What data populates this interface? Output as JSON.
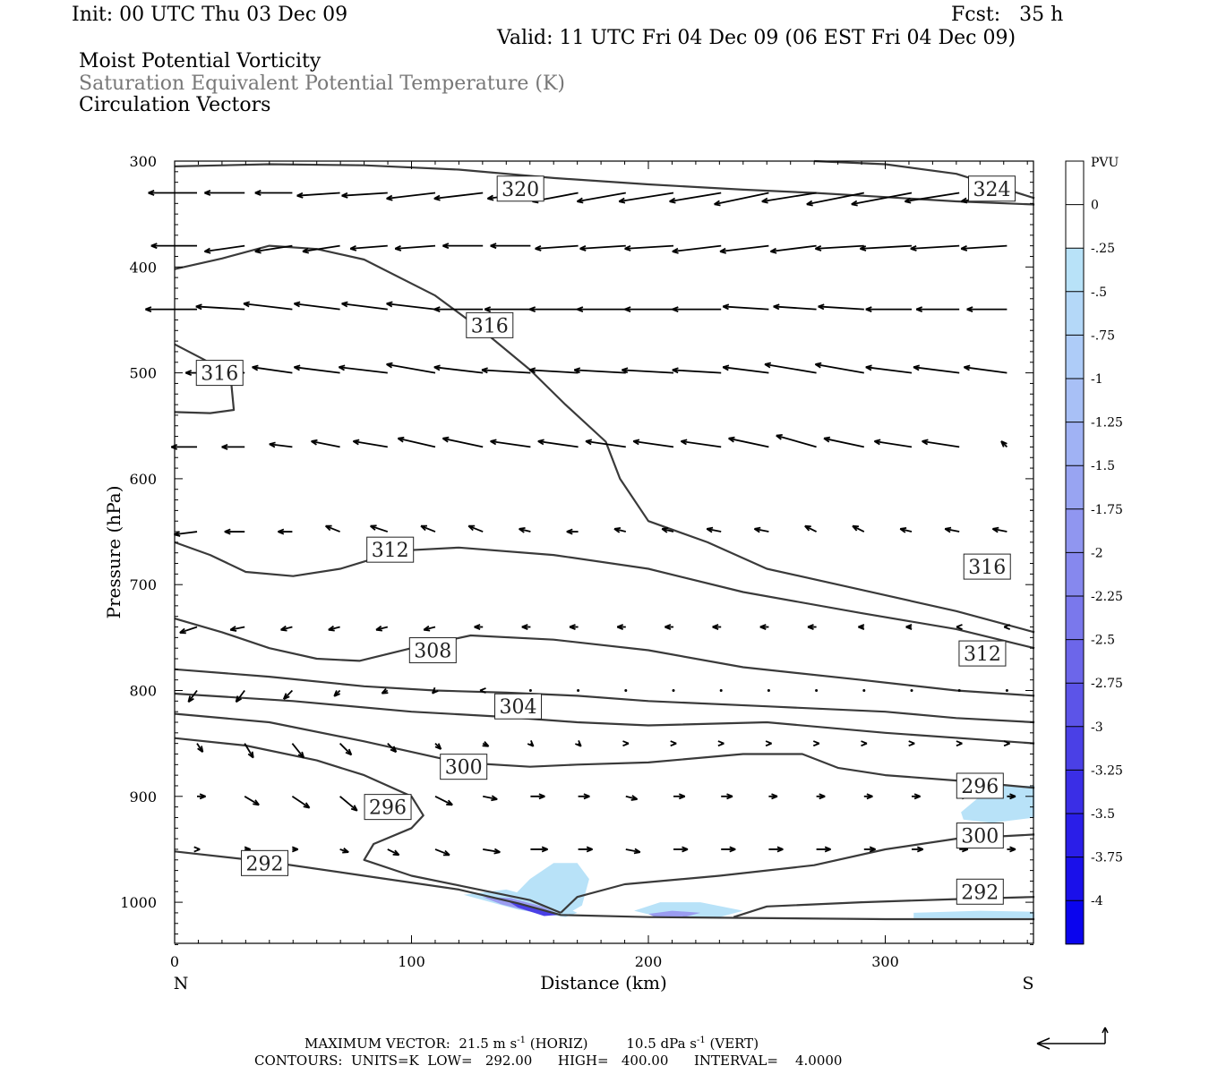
{
  "header": {
    "init": "Init: 00 UTC Thu 03 Dec 09",
    "fcst": "Fcst:   35 h",
    "valid": "Valid: 11 UTC Fri 04 Dec 09 (06 EST Fri 04 Dec 09)"
  },
  "fields": {
    "line1": "Moist Potential Vorticity",
    "line2": "Saturation Equivalent Potential Temperature (K)",
    "line3": "Circulation Vectors"
  },
  "footer": {
    "max_prefix": "MAXIMUM VECTOR:  21.5 m s",
    "max_exp1": "-1",
    "max_mid": " (HORIZ)         10.5 dPa s",
    "max_exp2": "-1",
    "max_suffix": " (VERT)",
    "contours": "CONTOURS:  UNITS=K  LOW=   292.00      HIGH=   400.00      INTERVAL=    4.0000"
  },
  "chart_data": {
    "type": "cross-section",
    "xlabel": "Distance (km)",
    "ylabel": "Pressure (hPa)",
    "xlim": [
      0,
      363
    ],
    "ylim": [
      1040,
      300
    ],
    "x_ticks": [
      "0",
      "100",
      "200",
      "300"
    ],
    "y_ticks": [
      "300",
      "400",
      "500",
      "600",
      "700",
      "800",
      "900",
      "1000"
    ],
    "x_end_labels": {
      "left": "N",
      "right": "S"
    },
    "colorbar": {
      "title": "PVU",
      "labels": [
        "0",
        "-.25",
        "-.5",
        "-.75",
        "-1",
        "-1.25",
        "-1.5",
        "-1.75",
        "-2",
        "-2.25",
        "-2.5",
        "-2.75",
        "-3",
        "-3.25",
        "-3.5",
        "-3.75",
        "-4"
      ],
      "colors": [
        "#ffffff",
        "#ffffff",
        "#b8e2f8",
        "#b4d8f8",
        "#aeccf8",
        "#a8c0f6",
        "#a0b2f4",
        "#98a4f2",
        "#9096f0",
        "#8688ee",
        "#7a78ec",
        "#6c66ea",
        "#5c54e8",
        "#4a40e6",
        "#3a2ee6",
        "#2a1ee8",
        "#1a10ea",
        "#0a04ee"
      ]
    },
    "contours": [
      {
        "label": "320",
        "points": [
          [
            0,
            305
          ],
          [
            40,
            303
          ],
          [
            80,
            304
          ],
          [
            120,
            308
          ],
          [
            160,
            316
          ],
          [
            200,
            322
          ],
          [
            240,
            327
          ],
          [
            270,
            330
          ],
          [
            300,
            334
          ],
          [
            330,
            338
          ],
          [
            363,
            341
          ]
        ]
      },
      {
        "label": "324",
        "points": [
          [
            270,
            300
          ],
          [
            300,
            303
          ],
          [
            330,
            312
          ],
          [
            363,
            335
          ]
        ]
      },
      {
        "label": "316",
        "points": [
          [
            0,
            402
          ],
          [
            20,
            392
          ],
          [
            40,
            380
          ],
          [
            60,
            383
          ],
          [
            80,
            393
          ],
          [
            110,
            427
          ],
          [
            130,
            460
          ],
          [
            150,
            497
          ],
          [
            165,
            530
          ],
          [
            182,
            565
          ],
          [
            188,
            600
          ],
          [
            200,
            640
          ],
          [
            225,
            660
          ],
          [
            250,
            685
          ],
          [
            290,
            705
          ],
          [
            330,
            725
          ],
          [
            363,
            745
          ]
        ]
      },
      {
        "label": "316",
        "points": [
          [
            0,
            473
          ],
          [
            12,
            487
          ],
          [
            20,
            497
          ],
          [
            24,
            512
          ],
          [
            25,
            535
          ],
          [
            15,
            538
          ],
          [
            0,
            537
          ]
        ]
      },
      {
        "label": "312",
        "points": [
          [
            0,
            660
          ],
          [
            15,
            672
          ],
          [
            30,
            688
          ],
          [
            50,
            692
          ],
          [
            70,
            685
          ],
          [
            95,
            668
          ],
          [
            120,
            665
          ],
          [
            160,
            672
          ],
          [
            200,
            685
          ],
          [
            240,
            707
          ],
          [
            290,
            727
          ],
          [
            330,
            742
          ],
          [
            363,
            760
          ]
        ]
      },
      {
        "label": "308",
        "points": [
          [
            0,
            732
          ],
          [
            20,
            745
          ],
          [
            40,
            760
          ],
          [
            60,
            770
          ],
          [
            78,
            772
          ],
          [
            100,
            760
          ],
          [
            125,
            748
          ],
          [
            160,
            752
          ],
          [
            200,
            762
          ],
          [
            240,
            778
          ],
          [
            290,
            790
          ],
          [
            330,
            800
          ],
          [
            363,
            805
          ]
        ]
      },
      {
        "label": "304",
        "points": [
          [
            0,
            780
          ],
          [
            40,
            787
          ],
          [
            80,
            796
          ],
          [
            110,
            800
          ],
          [
            140,
            802
          ],
          [
            170,
            805
          ],
          [
            200,
            810
          ],
          [
            250,
            815
          ],
          [
            300,
            820
          ],
          [
            330,
            826
          ],
          [
            363,
            830
          ]
        ]
      },
      {
        "label": "300",
        "points": [
          [
            0,
            803
          ],
          [
            50,
            810
          ],
          [
            100,
            820
          ],
          [
            140,
            825
          ],
          [
            170,
            830
          ],
          [
            200,
            833
          ],
          [
            250,
            830
          ],
          [
            300,
            840
          ],
          [
            363,
            850
          ]
        ]
      },
      {
        "label": "296",
        "points": [
          [
            0,
            822
          ],
          [
            40,
            830
          ],
          [
            80,
            848
          ],
          [
            120,
            868
          ],
          [
            150,
            872
          ],
          [
            170,
            870
          ],
          [
            200,
            868
          ],
          [
            240,
            860
          ],
          [
            265,
            860
          ],
          [
            280,
            873
          ],
          [
            300,
            880
          ],
          [
            330,
            885
          ],
          [
            363,
            892
          ]
        ]
      },
      {
        "label": "292",
        "points": [
          [
            0,
            845
          ],
          [
            30,
            852
          ],
          [
            60,
            866
          ],
          [
            80,
            880
          ],
          [
            100,
            900
          ],
          [
            105,
            918
          ],
          [
            100,
            930
          ],
          [
            84,
            945
          ],
          [
            80,
            960
          ],
          [
            100,
            975
          ],
          [
            122,
            985
          ],
          [
            150,
            998
          ],
          [
            163,
            1010
          ]
        ]
      },
      {
        "label": "296",
        "points": [
          [
            163,
            1010
          ],
          [
            170,
            995
          ],
          [
            190,
            983
          ],
          [
            230,
            975
          ],
          [
            270,
            965
          ],
          [
            300,
            950
          ],
          [
            330,
            940
          ],
          [
            363,
            936
          ]
        ]
      },
      {
        "label": "300",
        "points": [
          [
            236,
            1014
          ],
          [
            250,
            1004
          ],
          [
            290,
            1000
          ],
          [
            330,
            997
          ],
          [
            363,
            995
          ]
        ]
      },
      {
        "label": "292",
        "points": [
          [
            0,
            952
          ],
          [
            40,
            962
          ],
          [
            80,
            975
          ],
          [
            120,
            988
          ],
          [
            145,
            1001
          ],
          [
            163,
            1012
          ],
          [
            200,
            1014
          ],
          [
            300,
            1016
          ],
          [
            363,
            1016
          ]
        ]
      }
    ],
    "vector_rows": [
      {
        "p": 330,
        "us": [
          -17,
          -14,
          -13,
          -15,
          -16,
          -17,
          -17,
          -15,
          -16,
          -17,
          -19,
          -18,
          -19,
          -19,
          -20,
          -21,
          -19,
          -16
        ],
        "ws": [
          0,
          0,
          0,
          1,
          1,
          2,
          2,
          2,
          3,
          3,
          3,
          3,
          4,
          3,
          4,
          4,
          3,
          3
        ]
      },
      {
        "p": 380,
        "us": [
          -16,
          -14,
          -13,
          -13,
          -13,
          -14,
          -14,
          -14,
          -15,
          -16,
          -17,
          -17,
          -17,
          -16,
          -17,
          -18,
          -17,
          -16
        ],
        "ws": [
          0,
          2,
          2,
          2,
          1,
          1,
          0,
          0,
          1,
          1,
          1,
          2,
          2,
          2,
          1,
          1,
          1,
          1
        ]
      },
      {
        "p": 440,
        "us": [
          -18,
          -17,
          -17,
          -16,
          -16,
          -17,
          -17,
          -16,
          -17,
          -17,
          -17,
          -17,
          -16,
          -15,
          -16,
          -16,
          -15,
          -14
        ],
        "ws": [
          0,
          -1,
          -2,
          -2,
          -2,
          -2,
          0,
          0,
          0,
          0,
          0,
          0,
          -1,
          -1,
          -1,
          0,
          0,
          0
        ]
      },
      {
        "p": 500,
        "us": [
          -4,
          -15,
          -14,
          -16,
          -17,
          -17,
          -17,
          -17,
          -17,
          -18,
          -18,
          -17,
          -16,
          -18,
          -17,
          -16,
          -16,
          -15
        ],
        "ws": [
          0,
          -2,
          -2,
          -2,
          -2,
          -3,
          -2,
          -1,
          -1,
          -1,
          -1,
          -1,
          -2,
          -3,
          -3,
          -2,
          -2,
          -2
        ]
      },
      {
        "p": 570,
        "us": [
          -9,
          -8,
          -8,
          -10,
          -12,
          -13,
          -14,
          -14,
          -14,
          -14,
          -14,
          -14,
          -14,
          -14,
          -14,
          -13,
          -13,
          -2
        ],
        "ws": [
          0,
          0,
          -1,
          -2,
          -2,
          -3,
          -3,
          -2,
          -2,
          -2,
          -2,
          -2,
          -3,
          -4,
          -3,
          -2,
          -2,
          -2
        ]
      },
      {
        "p": 650,
        "us": [
          -8,
          -7,
          -5,
          -5,
          -6,
          -5,
          -5,
          -4,
          -4,
          -4,
          -4,
          -5,
          -5,
          -4,
          -4,
          -4,
          -5,
          -5
        ],
        "ws": [
          1,
          0,
          0,
          -2,
          -2,
          -2,
          -2,
          -1,
          0,
          -1,
          -1,
          -1,
          -1,
          -2,
          -2,
          -1,
          -1,
          -1
        ]
      },
      {
        "p": 740,
        "us": [
          -6,
          -5,
          -4,
          -4,
          -4,
          -4,
          -3,
          -3,
          -3,
          -3,
          -3,
          -3,
          -3,
          -3,
          -2,
          -2,
          -1,
          -1
        ],
        "ws": [
          2,
          1,
          1,
          1,
          1,
          1,
          0,
          0,
          0,
          0,
          0,
          0,
          0,
          0,
          0,
          0,
          0,
          0
        ]
      },
      {
        "p": 800,
        "us": [
          -3,
          -3,
          -3,
          -2,
          -2,
          -1,
          -1,
          0,
          0,
          0,
          0,
          0,
          0,
          0,
          0,
          0,
          0,
          0
        ],
        "ws": [
          4,
          4,
          3,
          2,
          1,
          1,
          0,
          0,
          0,
          0,
          0,
          0,
          0,
          0,
          0,
          0,
          0,
          0
        ]
      },
      {
        "p": 850,
        "us": [
          2,
          3,
          4,
          4,
          3,
          2,
          2,
          1,
          1,
          1,
          1,
          1,
          1,
          1,
          1,
          1,
          1,
          1
        ],
        "ws": [
          3,
          5,
          5,
          4,
          3,
          2,
          1,
          1,
          1,
          0,
          0,
          0,
          0,
          0,
          0,
          0,
          0,
          0
        ]
      },
      {
        "p": 900,
        "us": [
          3,
          5,
          6,
          6,
          6,
          6,
          5,
          5,
          4,
          4,
          4,
          4,
          3,
          3,
          3,
          3,
          3,
          3
        ],
        "ws": [
          0,
          3,
          4,
          5,
          4,
          3,
          1,
          0,
          0,
          1,
          0,
          0,
          0,
          0,
          0,
          0,
          0,
          0
        ]
      },
      {
        "p": 950,
        "us": [
          1,
          2,
          2,
          3,
          4,
          5,
          6,
          6,
          5,
          5,
          5,
          5,
          5,
          5,
          4,
          4,
          3,
          3
        ],
        "ws": [
          0,
          0,
          0,
          1,
          2,
          2,
          1,
          0,
          0,
          1,
          0,
          0,
          0,
          0,
          0,
          0,
          0,
          0
        ]
      }
    ]
  }
}
